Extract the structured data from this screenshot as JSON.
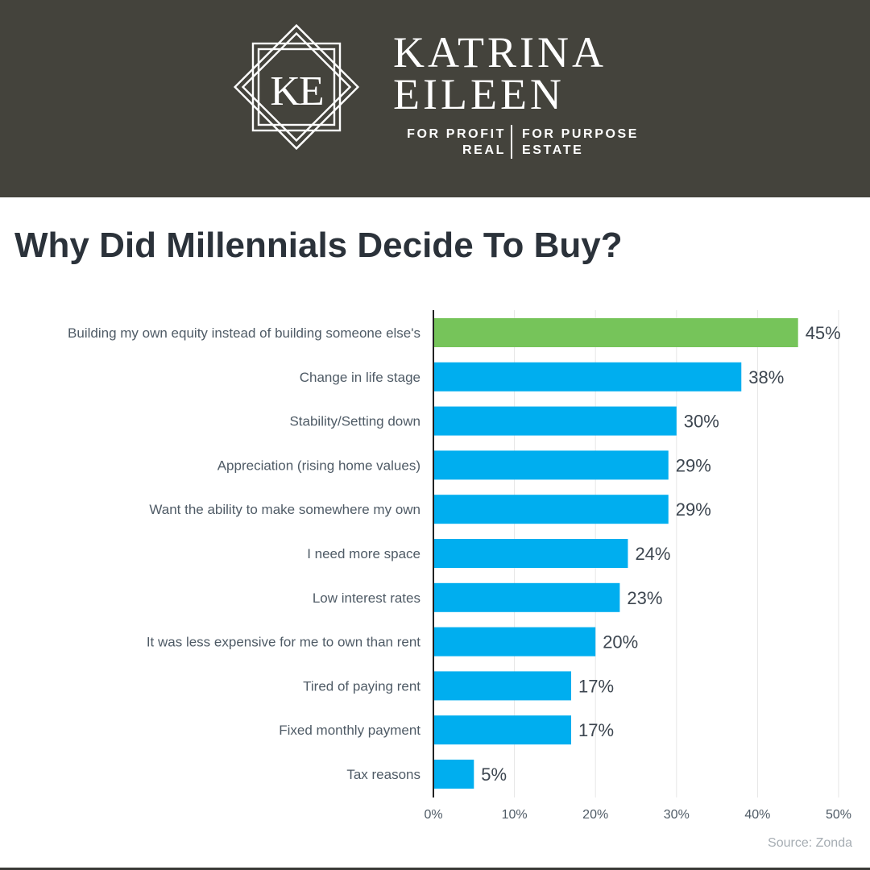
{
  "brand": {
    "name_line1": "KATRINA",
    "name_line2": "EILEEN",
    "monogram": "KE",
    "tagline_left": [
      "FOR PROFIT",
      "REAL"
    ],
    "tagline_right": [
      "FOR PURPOSE",
      "ESTATE"
    ],
    "header_bg": "#44433c",
    "logo_icon": "diamond-monogram-logo"
  },
  "page_title": "Why Did Millennials Decide To Buy?",
  "source": "Source: Zonda",
  "chart_data": {
    "type": "bar",
    "orientation": "horizontal",
    "title": "Why Did Millennials Decide To Buy?",
    "categories": [
      "Building my own equity instead of building someone else's",
      "Change in life stage",
      "Stability/Setting down",
      "Appreciation (rising home values)",
      "Want the ability to make somewhere my own",
      "I need more space",
      "Low interest rates",
      "It was less expensive for me to own than rent",
      "Tired of paying rent",
      "Fixed monthly payment",
      "Tax reasons"
    ],
    "values": [
      45,
      38,
      30,
      29,
      29,
      24,
      23,
      20,
      17,
      17,
      5
    ],
    "value_labels": [
      "45%",
      "38%",
      "30%",
      "29%",
      "29%",
      "24%",
      "23%",
      "20%",
      "17%",
      "17%",
      "5%"
    ],
    "xlim": [
      0,
      50
    ],
    "x_ticks": [
      0,
      10,
      20,
      30,
      40,
      50
    ],
    "x_tick_labels": [
      "0%",
      "10%",
      "20%",
      "30%",
      "40%",
      "50%"
    ],
    "grid": "vertical",
    "legend": "none",
    "colors": {
      "highlight": "#76c45a",
      "default": "#00aeef",
      "gridline": "#e6e6e6",
      "axis": "#222222",
      "category_label": "#4f5b66",
      "value_label": "#3d4650",
      "tick_label": "#4f5b66"
    },
    "highlight_index": 0
  }
}
